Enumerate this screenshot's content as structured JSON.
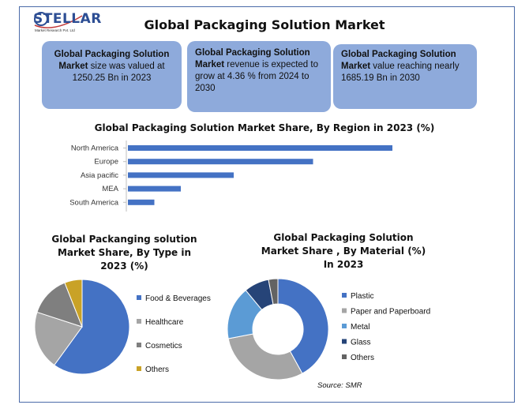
{
  "logo": {
    "word": "STELLAR",
    "tagline": "Market Research Pvt. Ltd"
  },
  "title": "Global Packaging Solution Market",
  "boxes": [
    {
      "bold": "Global Packaging Solution Market",
      "rest": " size was valued at 1250.25 Bn in 2023"
    },
    {
      "bold": "Global Packaging Solution Market",
      "rest": " revenue is expected to grow at 4.36 % from 2024 to 2030"
    },
    {
      "bold": "Global Packaging Solution Market",
      "rest": " value reaching nearly 1685.19 Bn in 2030"
    }
  ],
  "source": "Source: SMR",
  "colors": {
    "bar": "#4472c4",
    "box": "#8eaadb",
    "frame": "#4a6aa8"
  },
  "chart_data": [
    {
      "type": "bar",
      "orientation": "horizontal",
      "title": "Global Packaging Solution Market Share, By Region in 2023 (%)",
      "categories": [
        "North America",
        "Europe",
        "Asia pacific",
        "MEA",
        "South America"
      ],
      "values": [
        40,
        28,
        16,
        8,
        4
      ],
      "grid": false,
      "legend": "none"
    },
    {
      "type": "pie",
      "title": "Global Packanging solution Market Share, By Type in 2023 (%)",
      "categories": [
        "Food & Beverages",
        "Healthcare",
        "Cosmetics",
        "Others"
      ],
      "values": [
        60,
        20,
        14,
        6
      ],
      "colors": [
        "#4472c4",
        "#a5a5a5",
        "#7f7f7f",
        "#c9a227"
      ],
      "legend": "right"
    },
    {
      "type": "pie",
      "donut": true,
      "title": "Global Packaging Solution Market Share , By Material (%) In 2023",
      "categories": [
        "Plastic",
        "Paper and Paperboard",
        "Metal",
        "Glass",
        "Others"
      ],
      "values": [
        42,
        30,
        17,
        8,
        3
      ],
      "colors": [
        "#4472c4",
        "#a5a5a5",
        "#5b9bd5",
        "#264478",
        "#636363"
      ],
      "legend": "right"
    }
  ]
}
